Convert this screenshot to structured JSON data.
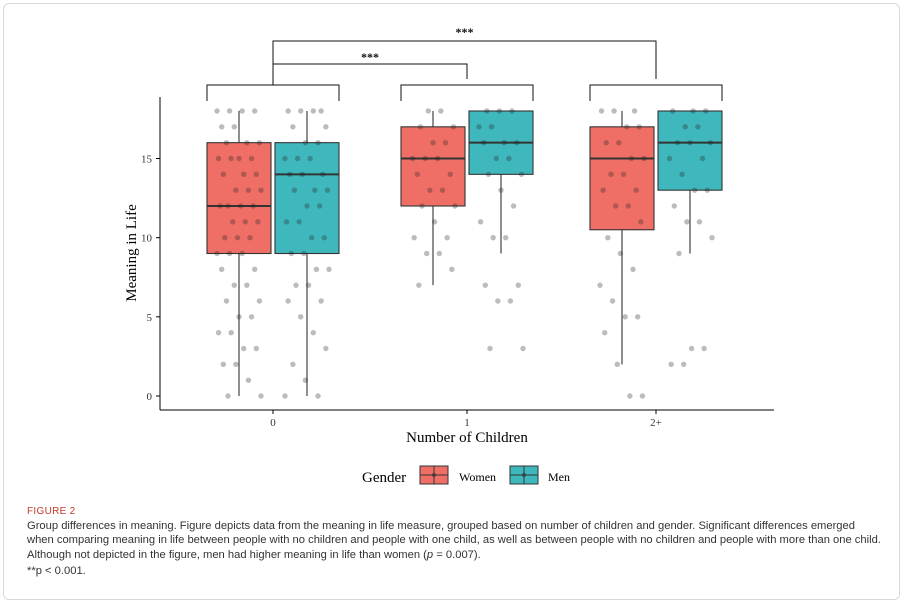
{
  "figure": {
    "label": "FIGURE 2",
    "caption_line1": "Group differences in meaning. Figure depicts data from the meaning in life measure, grouped based on number of children and gender. Significant",
    "caption_line2": "differences emerged when comparing meaning in life between people with no children and people with one child, as well as between people with no",
    "caption_line3_a": "children and people with more than one child. Although not depicted in the figure, men had higher meaning in life than women (",
    "caption_line3_p": "p",
    "caption_line3_b": " = 0.007).",
    "note": "**p < 0.001."
  },
  "chart_data": {
    "type": "box",
    "xlabel": "Number of Children",
    "ylabel": "Meaning in Life",
    "categories": [
      "0",
      "1",
      "2+"
    ],
    "ylim": [
      -0.5,
      19
    ],
    "yticks": [
      0,
      5,
      10,
      15
    ],
    "grid": false,
    "legend": {
      "title": "Gender",
      "position": "bottom",
      "entries": [
        "Women",
        "Men"
      ]
    },
    "colors": {
      "Women": "#ef6f66",
      "Men": "#3fb8bd"
    },
    "series": [
      {
        "name": "Women",
        "boxes": [
          {
            "category": "0",
            "q1": 9,
            "median": 12,
            "q3": 16,
            "whisker_low": 0,
            "whisker_high": 18,
            "points": [
              18,
              18,
              18,
              18,
              17,
              17,
              16,
              16,
              16,
              15,
              15,
              15,
              15,
              14,
              14,
              14,
              13,
              13,
              13,
              12,
              12,
              12,
              12,
              11,
              11,
              11,
              10,
              10,
              10,
              9,
              9,
              9,
              8,
              8,
              7,
              7,
              6,
              6,
              5,
              5,
              4,
              4,
              3,
              3,
              2,
              2,
              1,
              0,
              0
            ]
          },
          {
            "category": "1",
            "q1": 12,
            "median": 15,
            "q3": 17,
            "whisker_low": 7,
            "whisker_high": 18,
            "points": [
              18,
              18,
              17,
              17,
              16,
              16,
              15,
              15,
              15,
              14,
              14,
              13,
              13,
              12,
              12,
              11,
              10,
              10,
              9,
              9,
              8,
              7
            ]
          },
          {
            "category": "2+",
            "q1": 10.5,
            "median": 15,
            "q3": 17,
            "whisker_low": 2,
            "whisker_high": 18,
            "points": [
              18,
              18,
              18,
              17,
              17,
              16,
              16,
              15,
              15,
              14,
              14,
              13,
              13,
              12,
              12,
              11,
              10,
              9,
              8,
              7,
              6,
              5,
              5,
              4,
              2,
              0,
              0
            ]
          }
        ]
      },
      {
        "name": "Men",
        "boxes": [
          {
            "category": "0",
            "q1": 9,
            "median": 14,
            "q3": 16,
            "whisker_low": 0,
            "whisker_high": 18,
            "points": [
              18,
              18,
              18,
              18,
              17,
              17,
              16,
              16,
              15,
              15,
              15,
              14,
              14,
              14,
              13,
              13,
              13,
              12,
              12,
              11,
              11,
              10,
              10,
              9,
              9,
              8,
              8,
              7,
              7,
              6,
              6,
              5,
              4,
              3,
              2,
              1,
              0,
              0
            ]
          },
          {
            "category": "1",
            "q1": 14,
            "median": 16,
            "q3": 18,
            "whisker_low": 9,
            "whisker_high": 18,
            "points": [
              18,
              18,
              18,
              17,
              17,
              16,
              16,
              16,
              15,
              15,
              14,
              14,
              13,
              12,
              11,
              10,
              10,
              7,
              7,
              6,
              6,
              3,
              3
            ]
          },
          {
            "category": "2+",
            "q1": 13,
            "median": 16,
            "q3": 18,
            "whisker_low": 9,
            "whisker_high": 18,
            "points": [
              18,
              18,
              18,
              17,
              17,
              16,
              16,
              16,
              15,
              15,
              14,
              13,
              13,
              12,
              11,
              11,
              10,
              9,
              3,
              3,
              2,
              2
            ]
          }
        ]
      }
    ],
    "annotations": [
      {
        "text": "***",
        "from": "0",
        "to": "1"
      },
      {
        "text": "***",
        "from": "0",
        "to": "2+"
      }
    ]
  }
}
